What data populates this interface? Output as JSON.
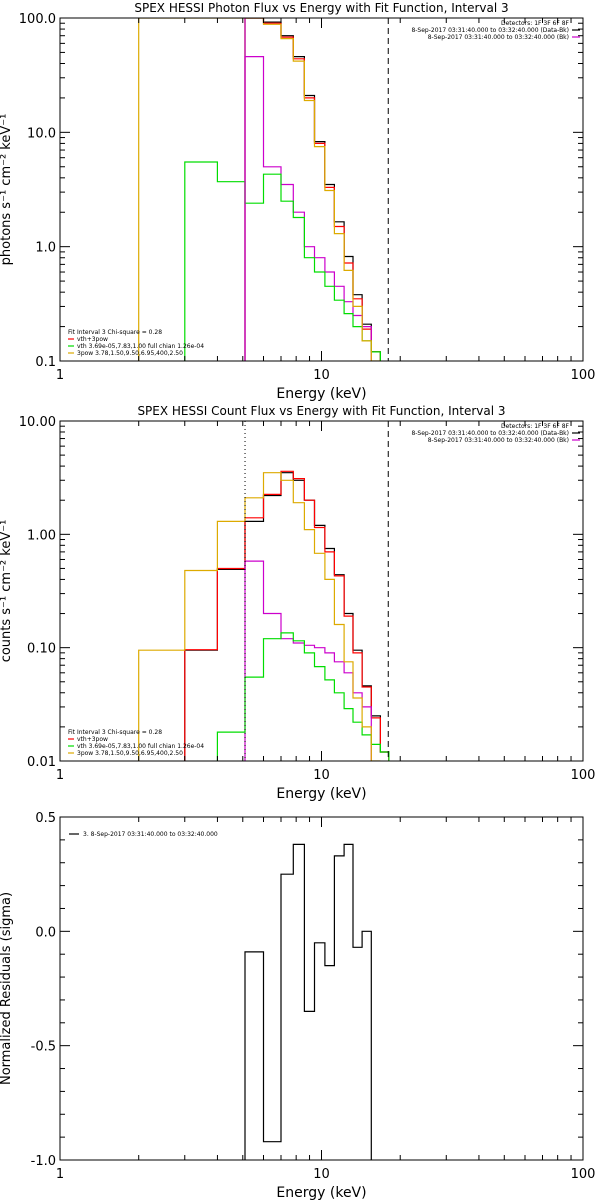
{
  "chart_data": [
    {
      "type": "line",
      "title": "SPEX HESSI Photon Flux vs Energy with Fit Function, Interval 3",
      "xlabel": "Energy (keV)",
      "ylabel": "photons s⁻¹ cm⁻² keV⁻¹",
      "xscale": "log",
      "yscale": "log",
      "xlim": [
        1,
        100
      ],
      "ylim": [
        0.1,
        100
      ],
      "x_ticks": [
        "1",
        "10",
        "100"
      ],
      "y_ticks": [
        {
          "value": 0.1,
          "label": "0.1"
        },
        {
          "value": 1,
          "label": "1.0"
        },
        {
          "value": 10,
          "label": "10.0"
        },
        {
          "value": 100,
          "label": "100.0"
        }
      ],
      "vlines": [
        {
          "x": 5.1,
          "style": "solid",
          "color": "#cc00cc"
        },
        {
          "x": 18,
          "style": "dashed",
          "color": "#000000"
        }
      ],
      "legend_top_right": [
        "Detectors: 1F 3F 6F 8F",
        "8-Sep-2017 03:31:40.000 to 03:32:40.000 (Data-Bk)",
        "8-Sep-2017 03:31:40.000 to 03:32:40.000 (Bk)"
      ],
      "legend_top_right_colors": [
        "",
        "#000000",
        "#cc00cc"
      ],
      "legend_bottom_left": [
        {
          "text": "Fit Interval 3   Chi-square = 0.28",
          "color": ""
        },
        {
          "text": "vth+3pow",
          "color": "#ff0000"
        },
        {
          "text": "vth 3.69e-05,7.83,1.00  full chian 1.26e-04",
          "color": "#00dd00"
        },
        {
          "text": "3pow 3.78,1.50,9.50,6.95,400,2.50",
          "color": "#ddaa00"
        }
      ],
      "bin_edges": [
        2,
        3,
        4,
        5.1,
        6,
        7,
        7.8,
        8.6,
        9.4,
        10.3,
        11.2,
        12.2,
        13.2,
        14.3,
        15.5,
        16.8,
        18.1,
        19.6,
        21.2
      ],
      "series": [
        {
          "name": "Data-Bk",
          "color": "#000000",
          "values": [
            null,
            null,
            null,
            100,
            92,
            70,
            46,
            21,
            8.3,
            3.5,
            1.65,
            0.82,
            0.38,
            0.21,
            0.12,
            null,
            null,
            null
          ]
        },
        {
          "name": "vth+3pow",
          "color": "#ff0000",
          "values": [
            null,
            null,
            null,
            100,
            90,
            68,
            44,
            20,
            8.0,
            3.3,
            1.5,
            0.72,
            0.35,
            0.19,
            0.12,
            null,
            null,
            null
          ]
        },
        {
          "name": "Bk",
          "color": "#cc00cc",
          "values": [
            null,
            null,
            null,
            46,
            5,
            3.5,
            2,
            1,
            0.8,
            0.6,
            0.45,
            0.33,
            0.25,
            0.2,
            null,
            null,
            null,
            null
          ]
        },
        {
          "name": "vth",
          "color": "#00dd00",
          "values": [
            null,
            5.5,
            3.7,
            2.4,
            4.3,
            2.5,
            1.8,
            0.8,
            0.6,
            0.45,
            0.34,
            0.26,
            0.2,
            0.15,
            0.12,
            null,
            null,
            null
          ]
        },
        {
          "name": "3pow",
          "color": "#ddaa00",
          "values": [
            100,
            100,
            100,
            100,
            88,
            66,
            42,
            19,
            7.5,
            3.1,
            1.3,
            0.62,
            0.3,
            0.15,
            0.1,
            null,
            null,
            null
          ]
        }
      ]
    },
    {
      "type": "line",
      "title": "SPEX HESSI Count Flux vs Energy with Fit Function, Interval 3",
      "xlabel": "Energy (keV)",
      "ylabel": "counts s⁻¹ cm⁻² keV⁻¹",
      "xscale": "log",
      "yscale": "log",
      "xlim": [
        1,
        100
      ],
      "ylim": [
        0.01,
        10
      ],
      "x_ticks": [
        "1",
        "10",
        "100"
      ],
      "y_ticks": [
        {
          "value": 0.01,
          "label": "0.01"
        },
        {
          "value": 0.1,
          "label": "0.10"
        },
        {
          "value": 1,
          "label": "1.00"
        },
        {
          "value": 10,
          "label": "10.00"
        }
      ],
      "vlines": [
        {
          "x": 5.1,
          "style": "dotted",
          "color": "#000000"
        },
        {
          "x": 18,
          "style": "dashed",
          "color": "#000000"
        }
      ],
      "legend_top_right": [
        "Detectors: 1F 3F 6F 8F",
        "8-Sep-2017 03:31:40.000 to 03:32:40.000 (Data-Bk)",
        "8-Sep-2017 03:31:40.000 to 03:32:40.000 (Bk)"
      ],
      "legend_top_right_colors": [
        "",
        "#000000",
        "#cc00cc"
      ],
      "legend_bottom_left": [
        {
          "text": "Fit Interval 3   Chi-square = 0.28",
          "color": ""
        },
        {
          "text": "vth+3pow",
          "color": "#ff0000"
        },
        {
          "text": "vth 3.69e-05,7.83,1.00  full chian 1.26e-04",
          "color": "#00dd00"
        },
        {
          "text": "3pow 3.78,1.50,9.50,6.95,400,2.50",
          "color": "#ddaa00"
        }
      ],
      "bin_edges": [
        2,
        3,
        4,
        5.1,
        6,
        7,
        7.8,
        8.6,
        9.4,
        10.3,
        11.2,
        12.2,
        13.2,
        14.3,
        15.5,
        16.8,
        18.1,
        19.6,
        21.2
      ],
      "series": [
        {
          "name": "Data-Bk",
          "color": "#000000",
          "values": [
            null,
            0.095,
            0.49,
            1.3,
            2.2,
            3.5,
            3.0,
            2.0,
            1.2,
            0.75,
            0.44,
            0.2,
            0.095,
            0.046,
            0.025,
            0.012,
            null,
            null
          ]
        },
        {
          "name": "vth+3pow",
          "color": "#ff0000",
          "values": [
            null,
            0.096,
            0.5,
            1.4,
            2.25,
            3.6,
            3.1,
            2.0,
            1.15,
            0.7,
            0.43,
            0.19,
            0.09,
            0.045,
            0.024,
            0.012,
            null,
            null
          ]
        },
        {
          "name": "Bk",
          "color": "#cc00cc",
          "values": [
            null,
            null,
            null,
            0.58,
            0.2,
            0.12,
            0.11,
            0.105,
            0.1,
            0.09,
            0.075,
            0.06,
            0.04,
            0.03,
            null,
            null,
            null,
            null
          ]
        },
        {
          "name": "vth",
          "color": "#00dd00",
          "values": [
            null,
            null,
            0.018,
            0.055,
            0.12,
            0.135,
            0.115,
            0.09,
            0.068,
            0.052,
            0.04,
            0.029,
            0.022,
            0.017,
            0.014,
            0.012,
            null,
            null
          ]
        },
        {
          "name": "3pow",
          "color": "#ddaa00",
          "values": [
            0.095,
            0.48,
            1.3,
            2.1,
            3.5,
            3.0,
            1.9,
            1.1,
            0.68,
            0.4,
            0.16,
            0.075,
            0.036,
            0.02,
            0.01,
            null,
            null,
            null
          ]
        }
      ]
    },
    {
      "type": "line",
      "title": "",
      "xlabel": "Energy (keV)",
      "ylabel": "Normalized Residuals (sigma)",
      "xscale": "log",
      "yscale": "linear",
      "xlim": [
        1,
        100
      ],
      "ylim": [
        -1.0,
        0.5
      ],
      "x_ticks": [
        "1",
        "10",
        "100"
      ],
      "y_ticks": [
        {
          "value": 0.5,
          "label": "0.5"
        },
        {
          "value": 0.0,
          "label": "0.0"
        },
        {
          "value": -0.5,
          "label": "-0.5"
        },
        {
          "value": -1.0,
          "label": "-1.0"
        }
      ],
      "legend_top_left": "3.  8-Sep-2017 03:31:40.000 to 03:32:40.000",
      "bin_edges": [
        5.1,
        6,
        7,
        7.8,
        8.6,
        9.4,
        10.3,
        11.2,
        12.2,
        13.2,
        14.3,
        15.5,
        16.8,
        18.1
      ],
      "series": [
        {
          "name": "",
          "color": "#000000",
          "values": [
            -0.09,
            -0.92,
            0.25,
            0.38,
            -0.35,
            -0.05,
            -0.15,
            0.33,
            0.38,
            -0.07,
            0.0,
            null,
            null
          ]
        }
      ]
    }
  ]
}
